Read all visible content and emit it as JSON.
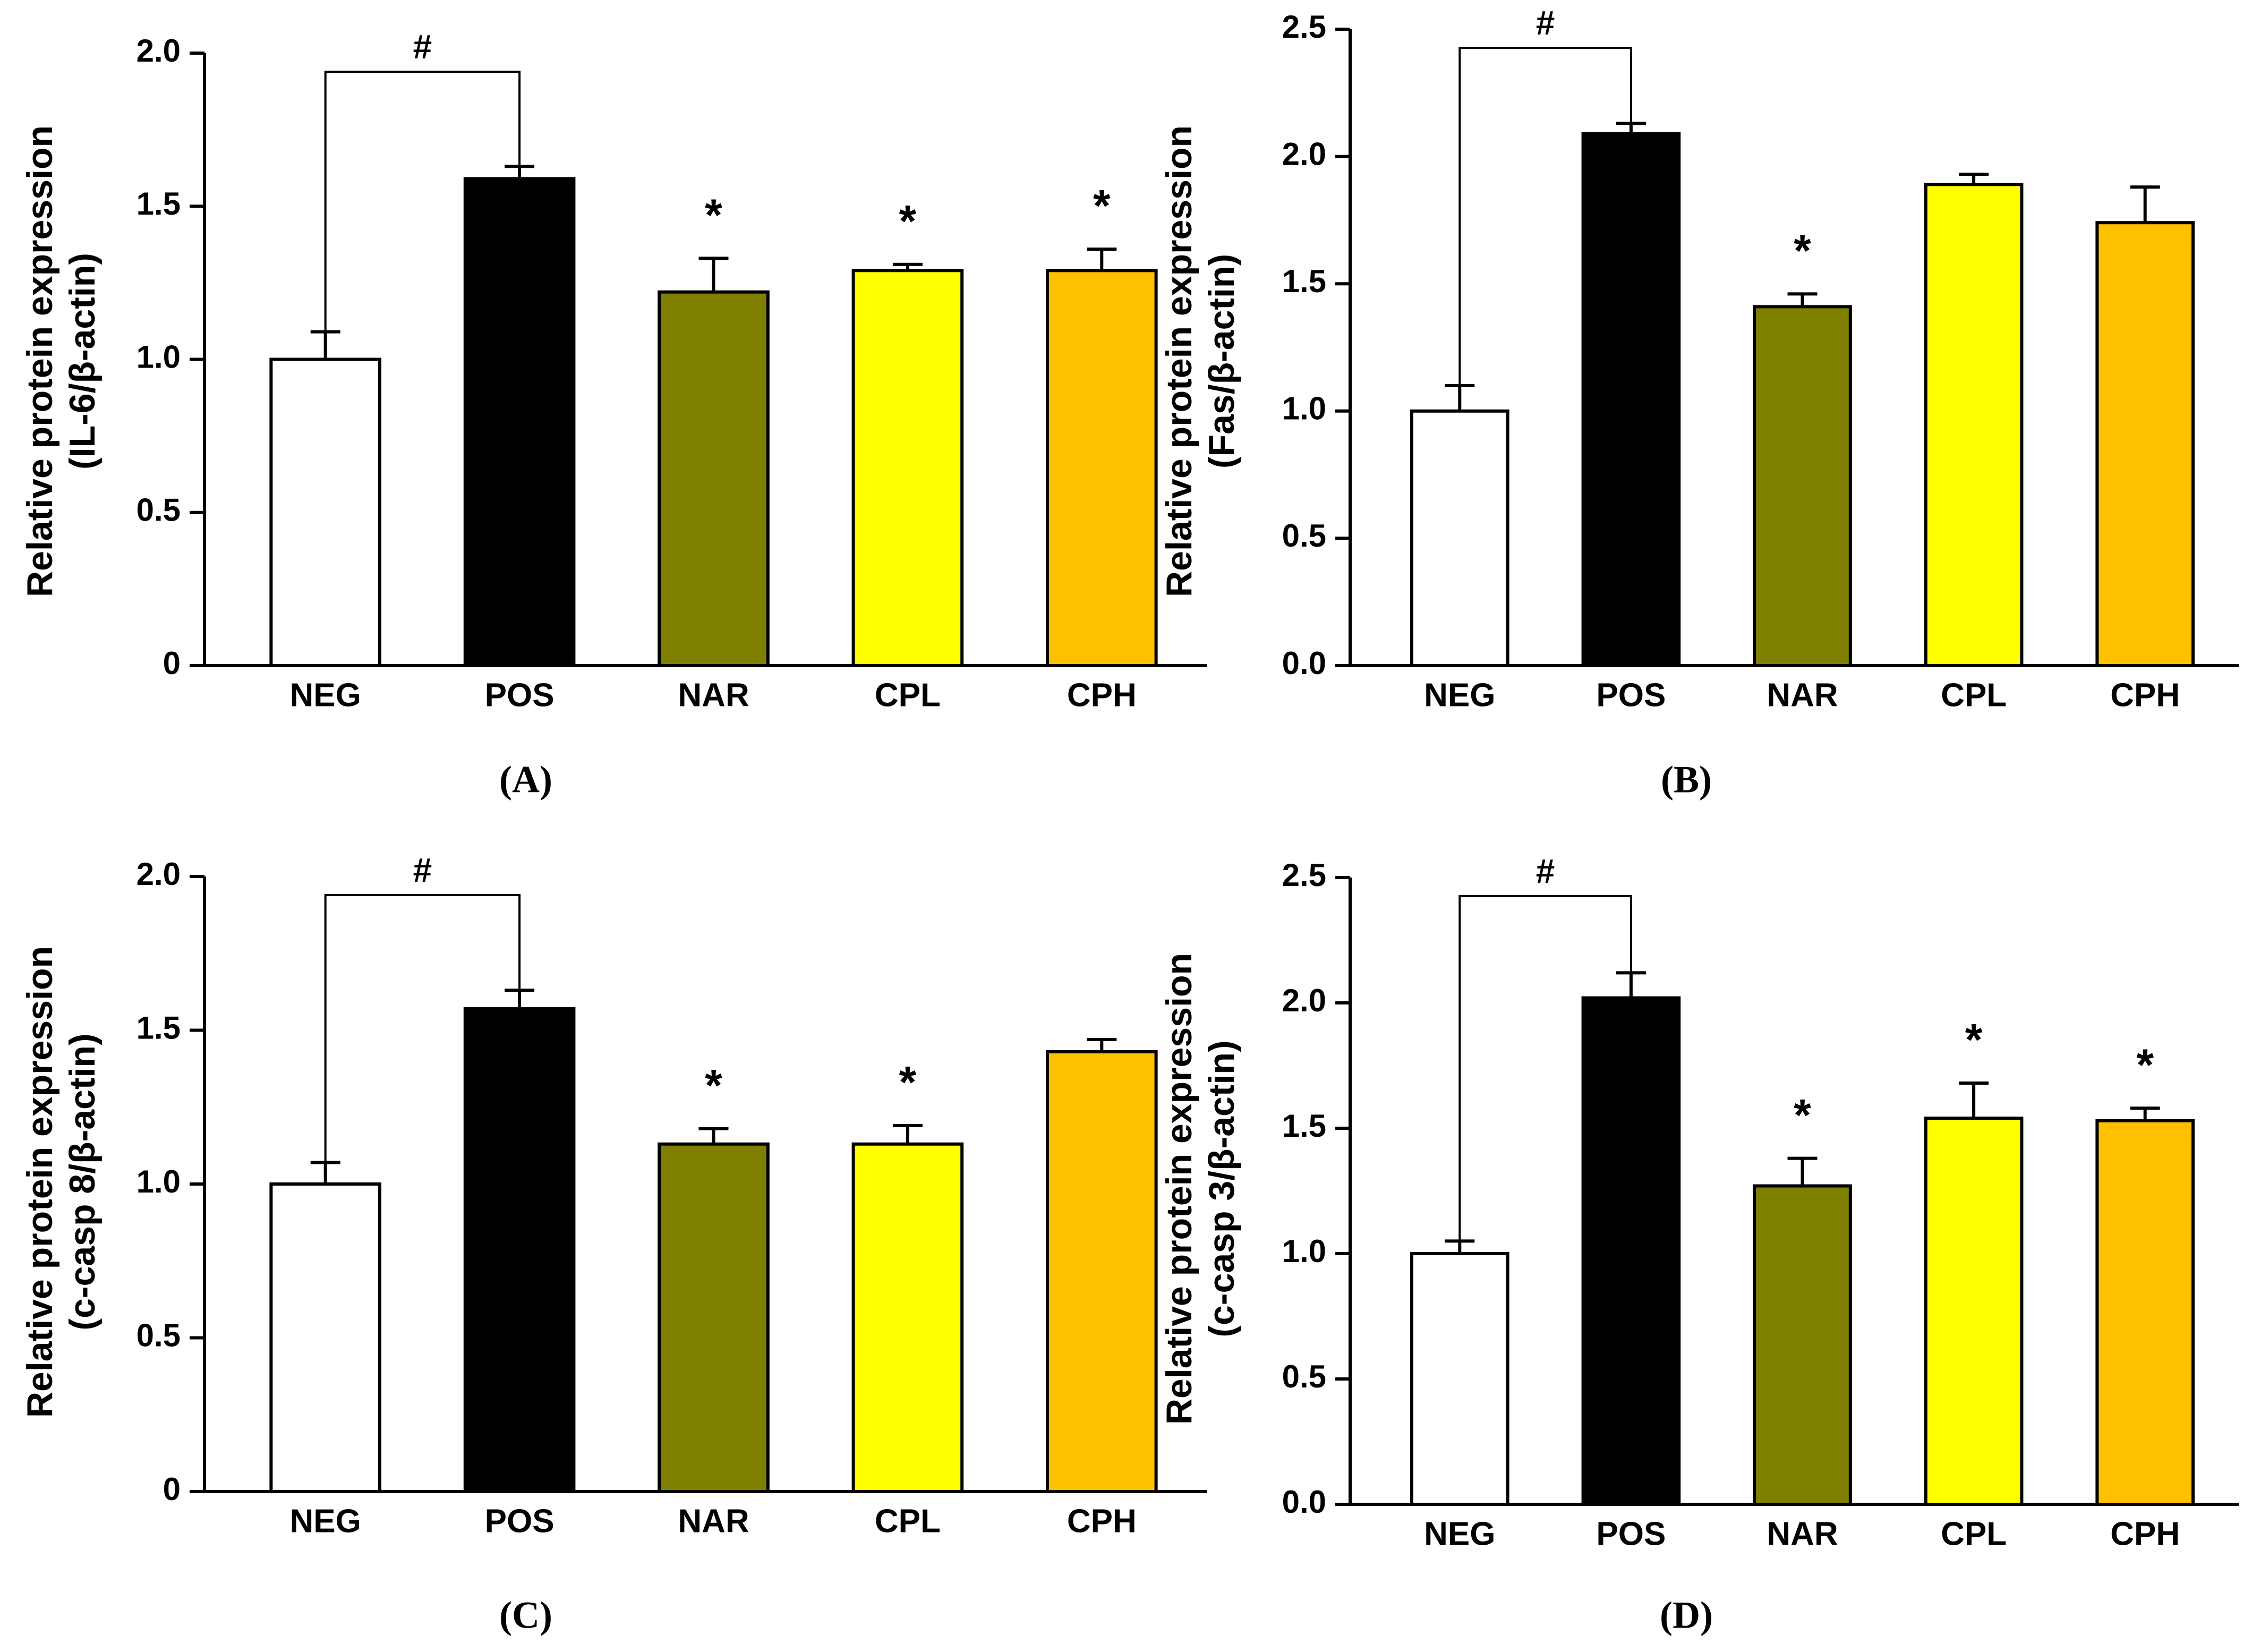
{
  "figure": {
    "panel_labels": [
      "(A)",
      "(B)",
      "(C)",
      "(D)"
    ]
  },
  "colors": {
    "NEG": "#ffffff",
    "POS": "#000000",
    "NAR": "#808000",
    "CPL": "#ffff00",
    "CPH": "#ffc000",
    "axis": "#000000"
  },
  "chart_data": [
    {
      "id": "A",
      "type": "bar",
      "panel_label": "(A)",
      "ylabel": "Relative protein expression",
      "ylabel2": "(IL-6/β-actin)",
      "categories": [
        "NEG",
        "POS",
        "NAR",
        "CPL",
        "CPH"
      ],
      "values": [
        1.0,
        1.59,
        1.22,
        1.29,
        1.29
      ],
      "errors": [
        0.09,
        0.04,
        0.11,
        0.02,
        0.07
      ],
      "significance": [
        "",
        "",
        "*",
        "*",
        "*"
      ],
      "bracket": {
        "from": 0,
        "to": 1,
        "label": "#"
      },
      "ylim": [
        0,
        2.0
      ],
      "ticks": [
        0,
        0.5,
        1.0,
        1.5,
        2.0
      ],
      "tick_labels": [
        "0",
        "0.5",
        "1.0",
        "1.5",
        "2.0"
      ]
    },
    {
      "id": "B",
      "type": "bar",
      "panel_label": "(B)",
      "ylabel": "Relative protein expression",
      "ylabel2": "(Fas/β-actin)",
      "categories": [
        "NEG",
        "POS",
        "NAR",
        "CPL",
        "CPH"
      ],
      "values": [
        1.0,
        2.09,
        1.41,
        1.89,
        1.74
      ],
      "errors": [
        0.1,
        0.04,
        0.05,
        0.04,
        0.14
      ],
      "significance": [
        "",
        "",
        "*",
        "",
        ""
      ],
      "bracket": {
        "from": 0,
        "to": 1,
        "label": "#"
      },
      "ylim": [
        0,
        2.5
      ],
      "ticks": [
        0,
        0.5,
        1.0,
        1.5,
        2.0,
        2.5
      ],
      "tick_labels": [
        "0.0",
        "0.5",
        "1.0",
        "1.5",
        "2.0",
        "2.5"
      ]
    },
    {
      "id": "C",
      "type": "bar",
      "panel_label": "(C)",
      "ylabel": "Relative protein expression",
      "ylabel2": "(c-casp 8/β-actin)",
      "categories": [
        "NEG",
        "POS",
        "NAR",
        "CPL",
        "CPH"
      ],
      "values": [
        1.0,
        1.57,
        1.13,
        1.13,
        1.43
      ],
      "errors": [
        0.07,
        0.06,
        0.05,
        0.06,
        0.04
      ],
      "significance": [
        "",
        "",
        "*",
        "*",
        ""
      ],
      "bracket": {
        "from": 0,
        "to": 1,
        "label": "#"
      },
      "ylim": [
        0,
        2.0
      ],
      "ticks": [
        0,
        0.5,
        1.0,
        1.5,
        2.0
      ],
      "tick_labels": [
        "0",
        "0.5",
        "1.0",
        "1.5",
        "2.0"
      ]
    },
    {
      "id": "D",
      "type": "bar",
      "panel_label": "(D)",
      "ylabel": "Relative protein expression",
      "ylabel2": "(c-casp 3/β-actin)",
      "categories": [
        "NEG",
        "POS",
        "NAR",
        "CPL",
        "CPH"
      ],
      "values": [
        1.0,
        2.02,
        1.27,
        1.54,
        1.53
      ],
      "errors": [
        0.05,
        0.1,
        0.11,
        0.14,
        0.05
      ],
      "significance": [
        "",
        "",
        "*",
        "*",
        "*"
      ],
      "bracket": {
        "from": 0,
        "to": 1,
        "label": "#"
      },
      "ylim": [
        0,
        2.5
      ],
      "ticks": [
        0,
        0.5,
        1.0,
        1.5,
        2.0,
        2.5
      ],
      "tick_labels": [
        "0.0",
        "0.5",
        "1.0",
        "1.5",
        "2.0",
        "2.5"
      ]
    }
  ]
}
